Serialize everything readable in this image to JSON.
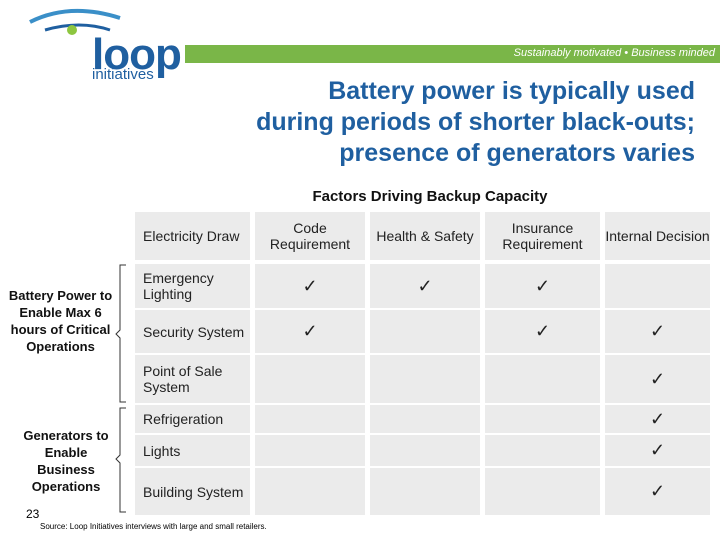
{
  "logo": {
    "name": "loop",
    "subtitle": "initiatives"
  },
  "tagline": "Sustainably motivated • Business minded",
  "title_lines": [
    "Battery power is typically used",
    "during periods of shorter black-outs;",
    "presence of generators varies"
  ],
  "table": {
    "title": "Factors Driving Backup Capacity",
    "columns": [
      "Electricity Draw",
      "Code Requirement",
      "Health & Safety",
      "Insurance Requirement",
      "Internal Decision"
    ],
    "groups": [
      {
        "label": "Battery Power to Enable Max 6 hours of Critical Operations"
      },
      {
        "label": "Generators to Enable Business Operations"
      }
    ],
    "rows": [
      {
        "label": "Emergency Lighting",
        "cells": [
          "✓",
          "✓",
          "✓",
          null
        ]
      },
      {
        "label": "Security System",
        "cells": [
          "✓",
          null,
          "✓",
          "✓"
        ]
      },
      {
        "label": "Point of Sale System",
        "cells": [
          null,
          null,
          null,
          "✓"
        ]
      },
      {
        "label": "Refrigeration",
        "cells": [
          null,
          null,
          null,
          "✓"
        ]
      },
      {
        "label": "Lights",
        "cells": [
          null,
          null,
          null,
          "✓"
        ]
      },
      {
        "label": "Building System",
        "cells": [
          null,
          null,
          null,
          "✓"
        ]
      }
    ]
  },
  "page_number": "23",
  "source": "Source: Loop Initiatives interviews with large and small retailers."
}
